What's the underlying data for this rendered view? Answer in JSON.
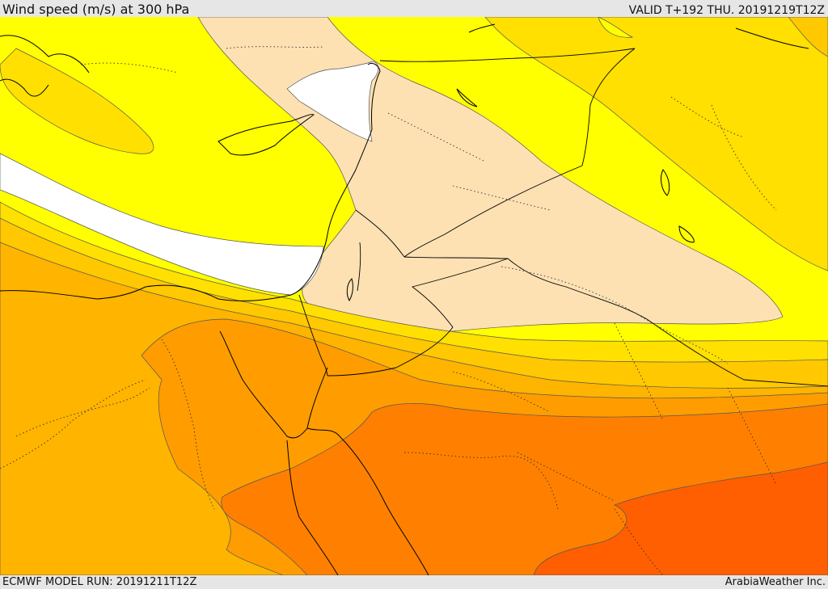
{
  "header": {
    "title": "Wind speed (m/s) at 300 hPa",
    "valid": "VALID T+192 THU. 20191219T12Z"
  },
  "footer": {
    "model_run": "ECMWF MODEL RUN: 20191211T12Z",
    "credit": "ArabiaWeather Inc."
  },
  "palette": {
    "wind_white": "#ffffff",
    "wind_beige": "#fde1b3",
    "wind_yellow": "#ffff00",
    "wind_gold": "#ffe000",
    "wind_amber": "#ffc800",
    "wind_light_orange": "#ffb400",
    "wind_orange": "#ff9d00",
    "wind_deep_orange": "#ff8000",
    "wind_red_orange": "#ff5f00",
    "coastline": "#000000",
    "borders": "#000000"
  }
}
